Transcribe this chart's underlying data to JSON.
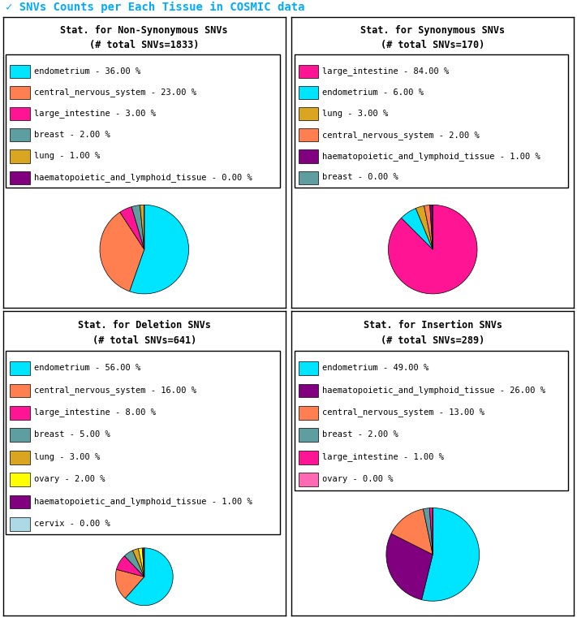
{
  "title": "SNVs Counts per Each Tissue in COSMIC data",
  "title_color": "#00aaff",
  "title_check": "✓",
  "subplots": [
    {
      "title": "Stat. for Non-Synonymous SNVs",
      "subtitle": "(# total SNVs=1833)",
      "labels": [
        "endometrium",
        "central_nervous_system",
        "large_intestine",
        "breast",
        "lung",
        "haematopoietic_and_lymphoid_tissue"
      ],
      "values": [
        36,
        23,
        3,
        2,
        1,
        0.001
      ],
      "colors": [
        "#00e5ff",
        "#ff7f50",
        "#ff1493",
        "#5f9ea0",
        "#daa520",
        "#800080"
      ],
      "display_values": [
        36,
        23,
        3,
        2,
        1,
        0
      ]
    },
    {
      "title": "Stat. for Synonymous SNVs",
      "subtitle": "(# total SNVs=170)",
      "labels": [
        "large_intestine",
        "endometrium",
        "lung",
        "central_nervous_system",
        "haematopoietic_and_lymphoid_tissue",
        "breast"
      ],
      "values": [
        84,
        6,
        3,
        2,
        1,
        0.001
      ],
      "colors": [
        "#ff1493",
        "#00e5ff",
        "#daa520",
        "#ff7f50",
        "#800080",
        "#5f9ea0"
      ],
      "display_values": [
        84,
        6,
        3,
        2,
        1,
        0
      ]
    },
    {
      "title": "Stat. for Deletion SNVs",
      "subtitle": "(# total SNVs=641)",
      "labels": [
        "endometrium",
        "central_nervous_system",
        "large_intestine",
        "breast",
        "lung",
        "ovary",
        "haematopoietic_and_lymphoid_tissue",
        "cervix"
      ],
      "values": [
        56,
        16,
        8,
        5,
        3,
        2,
        1,
        0.001
      ],
      "colors": [
        "#00e5ff",
        "#ff7f50",
        "#ff1493",
        "#5f9ea0",
        "#daa520",
        "#ffff00",
        "#800080",
        "#add8e6"
      ],
      "display_values": [
        56,
        16,
        8,
        5,
        3,
        2,
        1,
        0
      ]
    },
    {
      "title": "Stat. for Insertion SNVs",
      "subtitle": "(# total SNVs=289)",
      "labels": [
        "endometrium",
        "haematopoietic_and_lymphoid_tissue",
        "central_nervous_system",
        "breast",
        "large_intestine",
        "ovary"
      ],
      "values": [
        49,
        26,
        13,
        2,
        1,
        0.001
      ],
      "colors": [
        "#00e5ff",
        "#800080",
        "#ff7f50",
        "#5f9ea0",
        "#ff1493",
        "#ff69b4"
      ],
      "display_values": [
        49,
        26,
        13,
        2,
        1,
        0
      ]
    }
  ],
  "bg_color": "#ffffff",
  "border_color": "#000000",
  "text_color": "#000000",
  "legend_fontsize": 7.5,
  "title_fontsize": 8.5,
  "main_title_fontsize": 10
}
